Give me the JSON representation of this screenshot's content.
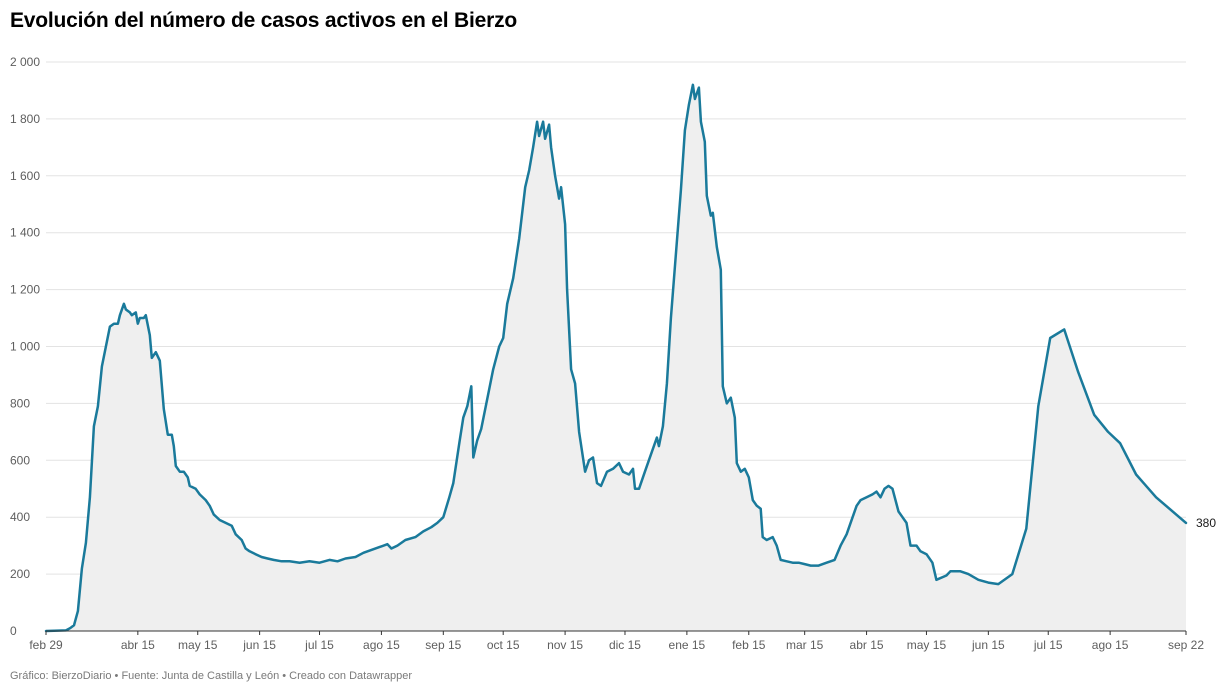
{
  "title": "Evolución del número de casos activos en el Bierzo",
  "footer": "Gráfico: BierzoDiario • Fuente: Junta de Castilla y León • Creado con Datawrapper",
  "colors": {
    "line": "#1a7a9b",
    "area": "#efefef",
    "grid": "#e3e3e3",
    "axis": "#333333"
  },
  "chart_data": {
    "type": "area",
    "title": "Evolución del número de casos activos en el Bierzo",
    "xlabel": "",
    "ylabel": "",
    "ylim": [
      0,
      2000
    ],
    "xlim": [
      "2020-02-29",
      "2021-09-22"
    ],
    "yticks": [
      0,
      200,
      400,
      600,
      800,
      1000,
      1200,
      1400,
      1600,
      1800,
      2000
    ],
    "ytick_labels": [
      "0",
      "200",
      "400",
      "600",
      "800",
      "1 000",
      "1 200",
      "1 400",
      "1 600",
      "1 800",
      "2 000"
    ],
    "xticks": [
      {
        "date": "2020-02-29",
        "label": "feb 29"
      },
      {
        "date": "2020-04-15",
        "label": "abr 15"
      },
      {
        "date": "2020-05-15",
        "label": "may 15"
      },
      {
        "date": "2020-06-15",
        "label": "jun 15"
      },
      {
        "date": "2020-07-15",
        "label": "jul 15"
      },
      {
        "date": "2020-08-15",
        "label": "ago 15"
      },
      {
        "date": "2020-09-15",
        "label": "sep 15"
      },
      {
        "date": "2020-10-15",
        "label": "oct 15"
      },
      {
        "date": "2020-11-15",
        "label": "nov 15"
      },
      {
        "date": "2020-12-15",
        "label": "dic 15"
      },
      {
        "date": "2021-01-15",
        "label": "ene 15"
      },
      {
        "date": "2021-02-15",
        "label": "feb 15"
      },
      {
        "date": "2021-03-15",
        "label": "mar 15"
      },
      {
        "date": "2021-04-15",
        "label": "abr 15"
      },
      {
        "date": "2021-05-15",
        "label": "may 15"
      },
      {
        "date": "2021-06-15",
        "label": "jun 15"
      },
      {
        "date": "2021-07-15",
        "label": "jul 15"
      },
      {
        "date": "2021-08-15",
        "label": "ago 15"
      },
      {
        "date": "2021-09-22",
        "label": "sep 22"
      }
    ],
    "grid": true,
    "end_label": "380",
    "series": [
      {
        "values": [
          {
            "x": "2020-02-29",
            "y": 0
          },
          {
            "x": "2020-03-10",
            "y": 2
          },
          {
            "x": "2020-03-12",
            "y": 10
          },
          {
            "x": "2020-03-14",
            "y": 20
          },
          {
            "x": "2020-03-16",
            "y": 70
          },
          {
            "x": "2020-03-18",
            "y": 220
          },
          {
            "x": "2020-03-20",
            "y": 310
          },
          {
            "x": "2020-03-22",
            "y": 470
          },
          {
            "x": "2020-03-24",
            "y": 720
          },
          {
            "x": "2020-03-26",
            "y": 790
          },
          {
            "x": "2020-03-28",
            "y": 930
          },
          {
            "x": "2020-03-30",
            "y": 1000
          },
          {
            "x": "2020-04-01",
            "y": 1070
          },
          {
            "x": "2020-04-03",
            "y": 1080
          },
          {
            "x": "2020-04-05",
            "y": 1080
          },
          {
            "x": "2020-04-06",
            "y": 1110
          },
          {
            "x": "2020-04-08",
            "y": 1150
          },
          {
            "x": "2020-04-09",
            "y": 1130
          },
          {
            "x": "2020-04-11",
            "y": 1120
          },
          {
            "x": "2020-04-12",
            "y": 1110
          },
          {
            "x": "2020-04-14",
            "y": 1120
          },
          {
            "x": "2020-04-15",
            "y": 1080
          },
          {
            "x": "2020-04-16",
            "y": 1100
          },
          {
            "x": "2020-04-18",
            "y": 1100
          },
          {
            "x": "2020-04-19",
            "y": 1110
          },
          {
            "x": "2020-04-21",
            "y": 1040
          },
          {
            "x": "2020-04-22",
            "y": 960
          },
          {
            "x": "2020-04-24",
            "y": 980
          },
          {
            "x": "2020-04-26",
            "y": 950
          },
          {
            "x": "2020-04-28",
            "y": 780
          },
          {
            "x": "2020-04-30",
            "y": 690
          },
          {
            "x": "2020-05-02",
            "y": 690
          },
          {
            "x": "2020-05-03",
            "y": 650
          },
          {
            "x": "2020-05-04",
            "y": 580
          },
          {
            "x": "2020-05-06",
            "y": 560
          },
          {
            "x": "2020-05-08",
            "y": 560
          },
          {
            "x": "2020-05-10",
            "y": 540
          },
          {
            "x": "2020-05-11",
            "y": 510
          },
          {
            "x": "2020-05-14",
            "y": 500
          },
          {
            "x": "2020-05-16",
            "y": 480
          },
          {
            "x": "2020-05-19",
            "y": 460
          },
          {
            "x": "2020-05-21",
            "y": 440
          },
          {
            "x": "2020-05-23",
            "y": 410
          },
          {
            "x": "2020-05-26",
            "y": 390
          },
          {
            "x": "2020-05-29",
            "y": 380
          },
          {
            "x": "2020-06-01",
            "y": 370
          },
          {
            "x": "2020-06-03",
            "y": 340
          },
          {
            "x": "2020-06-06",
            "y": 320
          },
          {
            "x": "2020-06-08",
            "y": 290
          },
          {
            "x": "2020-06-10",
            "y": 280
          },
          {
            "x": "2020-06-13",
            "y": 270
          },
          {
            "x": "2020-06-16",
            "y": 260
          },
          {
            "x": "2020-06-19",
            "y": 255
          },
          {
            "x": "2020-06-22",
            "y": 250
          },
          {
            "x": "2020-06-26",
            "y": 245
          },
          {
            "x": "2020-06-30",
            "y": 245
          },
          {
            "x": "2020-07-05",
            "y": 240
          },
          {
            "x": "2020-07-10",
            "y": 245
          },
          {
            "x": "2020-07-15",
            "y": 240
          },
          {
            "x": "2020-07-20",
            "y": 250
          },
          {
            "x": "2020-07-24",
            "y": 245
          },
          {
            "x": "2020-07-28",
            "y": 255
          },
          {
            "x": "2020-08-02",
            "y": 260
          },
          {
            "x": "2020-08-06",
            "y": 275
          },
          {
            "x": "2020-08-10",
            "y": 285
          },
          {
            "x": "2020-08-14",
            "y": 295
          },
          {
            "x": "2020-08-18",
            "y": 305
          },
          {
            "x": "2020-08-20",
            "y": 290
          },
          {
            "x": "2020-08-23",
            "y": 300
          },
          {
            "x": "2020-08-27",
            "y": 320
          },
          {
            "x": "2020-09-01",
            "y": 330
          },
          {
            "x": "2020-09-05",
            "y": 350
          },
          {
            "x": "2020-09-09",
            "y": 365
          },
          {
            "x": "2020-09-12",
            "y": 380
          },
          {
            "x": "2020-09-15",
            "y": 400
          },
          {
            "x": "2020-09-18",
            "y": 470
          },
          {
            "x": "2020-09-20",
            "y": 520
          },
          {
            "x": "2020-09-23",
            "y": 660
          },
          {
            "x": "2020-09-25",
            "y": 750
          },
          {
            "x": "2020-09-27",
            "y": 790
          },
          {
            "x": "2020-09-29",
            "y": 860
          },
          {
            "x": "2020-09-30",
            "y": 610
          },
          {
            "x": "2020-10-02",
            "y": 670
          },
          {
            "x": "2020-10-04",
            "y": 710
          },
          {
            "x": "2020-10-06",
            "y": 780
          },
          {
            "x": "2020-10-08",
            "y": 850
          },
          {
            "x": "2020-10-10",
            "y": 920
          },
          {
            "x": "2020-10-13",
            "y": 1000
          },
          {
            "x": "2020-10-15",
            "y": 1030
          },
          {
            "x": "2020-10-17",
            "y": 1150
          },
          {
            "x": "2020-10-20",
            "y": 1240
          },
          {
            "x": "2020-10-23",
            "y": 1380
          },
          {
            "x": "2020-10-26",
            "y": 1560
          },
          {
            "x": "2020-10-28",
            "y": 1620
          },
          {
            "x": "2020-10-30",
            "y": 1700
          },
          {
            "x": "2020-11-01",
            "y": 1790
          },
          {
            "x": "2020-11-02",
            "y": 1740
          },
          {
            "x": "2020-11-04",
            "y": 1790
          },
          {
            "x": "2020-11-05",
            "y": 1730
          },
          {
            "x": "2020-11-07",
            "y": 1780
          },
          {
            "x": "2020-11-08",
            "y": 1700
          },
          {
            "x": "2020-11-10",
            "y": 1600
          },
          {
            "x": "2020-11-12",
            "y": 1520
          },
          {
            "x": "2020-11-13",
            "y": 1560
          },
          {
            "x": "2020-11-15",
            "y": 1430
          },
          {
            "x": "2020-11-16",
            "y": 1200
          },
          {
            "x": "2020-11-18",
            "y": 920
          },
          {
            "x": "2020-11-20",
            "y": 870
          },
          {
            "x": "2020-11-22",
            "y": 700
          },
          {
            "x": "2020-11-25",
            "y": 560
          },
          {
            "x": "2020-11-27",
            "y": 600
          },
          {
            "x": "2020-11-29",
            "y": 610
          },
          {
            "x": "2020-12-01",
            "y": 520
          },
          {
            "x": "2020-12-03",
            "y": 510
          },
          {
            "x": "2020-12-06",
            "y": 560
          },
          {
            "x": "2020-12-09",
            "y": 570
          },
          {
            "x": "2020-12-12",
            "y": 590
          },
          {
            "x": "2020-12-14",
            "y": 560
          },
          {
            "x": "2020-12-17",
            "y": 550
          },
          {
            "x": "2020-12-19",
            "y": 570
          },
          {
            "x": "2020-12-20",
            "y": 500
          },
          {
            "x": "2020-12-22",
            "y": 500
          },
          {
            "x": "2020-12-25",
            "y": 560
          },
          {
            "x": "2020-12-28",
            "y": 620
          },
          {
            "x": "2020-12-31",
            "y": 680
          },
          {
            "x": "2021-01-01",
            "y": 650
          },
          {
            "x": "2021-01-03",
            "y": 720
          },
          {
            "x": "2021-01-05",
            "y": 870
          },
          {
            "x": "2021-01-07",
            "y": 1100
          },
          {
            "x": "2021-01-09",
            "y": 1280
          },
          {
            "x": "2021-01-12",
            "y": 1550
          },
          {
            "x": "2021-01-14",
            "y": 1760
          },
          {
            "x": "2021-01-16",
            "y": 1850
          },
          {
            "x": "2021-01-18",
            "y": 1920
          },
          {
            "x": "2021-01-19",
            "y": 1870
          },
          {
            "x": "2021-01-21",
            "y": 1910
          },
          {
            "x": "2021-01-22",
            "y": 1790
          },
          {
            "x": "2021-01-24",
            "y": 1720
          },
          {
            "x": "2021-01-25",
            "y": 1530
          },
          {
            "x": "2021-01-27",
            "y": 1460
          },
          {
            "x": "2021-01-28",
            "y": 1470
          },
          {
            "x": "2021-01-30",
            "y": 1350
          },
          {
            "x": "2021-02-01",
            "y": 1270
          },
          {
            "x": "2021-02-02",
            "y": 860
          },
          {
            "x": "2021-02-04",
            "y": 800
          },
          {
            "x": "2021-02-06",
            "y": 820
          },
          {
            "x": "2021-02-08",
            "y": 750
          },
          {
            "x": "2021-02-09",
            "y": 590
          },
          {
            "x": "2021-02-11",
            "y": 560
          },
          {
            "x": "2021-02-13",
            "y": 570
          },
          {
            "x": "2021-02-15",
            "y": 540
          },
          {
            "x": "2021-02-17",
            "y": 460
          },
          {
            "x": "2021-02-19",
            "y": 440
          },
          {
            "x": "2021-02-21",
            "y": 430
          },
          {
            "x": "2021-02-22",
            "y": 330
          },
          {
            "x": "2021-02-24",
            "y": 320
          },
          {
            "x": "2021-02-27",
            "y": 330
          },
          {
            "x": "2021-03-01",
            "y": 300
          },
          {
            "x": "2021-03-03",
            "y": 250
          },
          {
            "x": "2021-03-06",
            "y": 245
          },
          {
            "x": "2021-03-09",
            "y": 240
          },
          {
            "x": "2021-03-12",
            "y": 240
          },
          {
            "x": "2021-03-15",
            "y": 235
          },
          {
            "x": "2021-03-18",
            "y": 230
          },
          {
            "x": "2021-03-22",
            "y": 230
          },
          {
            "x": "2021-03-26",
            "y": 240
          },
          {
            "x": "2021-03-30",
            "y": 250
          },
          {
            "x": "2021-04-02",
            "y": 300
          },
          {
            "x": "2021-04-05",
            "y": 340
          },
          {
            "x": "2021-04-08",
            "y": 400
          },
          {
            "x": "2021-04-10",
            "y": 440
          },
          {
            "x": "2021-04-12",
            "y": 460
          },
          {
            "x": "2021-04-15",
            "y": 470
          },
          {
            "x": "2021-04-18",
            "y": 480
          },
          {
            "x": "2021-04-20",
            "y": 490
          },
          {
            "x": "2021-04-22",
            "y": 470
          },
          {
            "x": "2021-04-24",
            "y": 500
          },
          {
            "x": "2021-04-26",
            "y": 510
          },
          {
            "x": "2021-04-28",
            "y": 500
          },
          {
            "x": "2021-05-01",
            "y": 420
          },
          {
            "x": "2021-05-03",
            "y": 400
          },
          {
            "x": "2021-05-05",
            "y": 380
          },
          {
            "x": "2021-05-07",
            "y": 300
          },
          {
            "x": "2021-05-10",
            "y": 300
          },
          {
            "x": "2021-05-12",
            "y": 280
          },
          {
            "x": "2021-05-15",
            "y": 270
          },
          {
            "x": "2021-05-18",
            "y": 240
          },
          {
            "x": "2021-05-20",
            "y": 180
          },
          {
            "x": "2021-05-25",
            "y": 195
          },
          {
            "x": "2021-05-27",
            "y": 210
          },
          {
            "x": "2021-06-01",
            "y": 210
          },
          {
            "x": "2021-06-05",
            "y": 200
          },
          {
            "x": "2021-06-10",
            "y": 180
          },
          {
            "x": "2021-06-15",
            "y": 170
          },
          {
            "x": "2021-06-20",
            "y": 165
          },
          {
            "x": "2021-06-27",
            "y": 200
          },
          {
            "x": "2021-07-04",
            "y": 360
          },
          {
            "x": "2021-07-10",
            "y": 790
          },
          {
            "x": "2021-07-16",
            "y": 1030
          },
          {
            "x": "2021-07-23",
            "y": 1060
          },
          {
            "x": "2021-07-30",
            "y": 910
          },
          {
            "x": "2021-08-07",
            "y": 760
          },
          {
            "x": "2021-08-14",
            "y": 700
          },
          {
            "x": "2021-08-20",
            "y": 660
          },
          {
            "x": "2021-08-28",
            "y": 550
          },
          {
            "x": "2021-09-07",
            "y": 470
          },
          {
            "x": "2021-09-22",
            "y": 380
          }
        ]
      }
    ]
  }
}
